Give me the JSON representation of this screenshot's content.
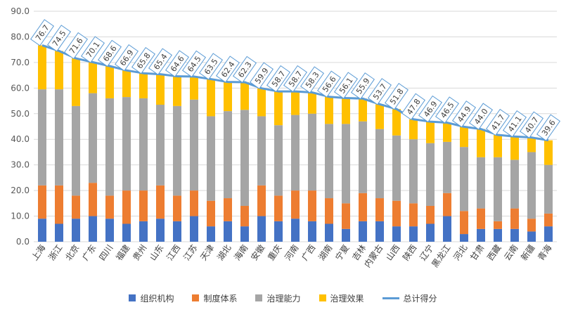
{
  "chart_data": {
    "type": "bar",
    "stacked": true,
    "ylim": [
      0,
      90
    ],
    "yticks": [
      "0.0",
      "10.0",
      "20.0",
      "30.0",
      "40.0",
      "50.0",
      "60.0",
      "70.0",
      "80.0",
      "90.0"
    ],
    "grid": true,
    "legend_position": "bottom",
    "categories": [
      "上海",
      "浙江",
      "北京",
      "广东",
      "四川",
      "福建",
      "贵州",
      "山东",
      "江西",
      "江苏",
      "天津",
      "湖北",
      "海南",
      "安徽",
      "重庆",
      "河南",
      "广西",
      "湖南",
      "宁夏",
      "吉林",
      "内蒙古",
      "山西",
      "陕西",
      "辽宁",
      "黑龙江",
      "河北",
      "甘肃",
      "西藏",
      "云南",
      "新疆",
      "青海"
    ],
    "series": [
      {
        "name": "组织机构",
        "color": "#4472C4",
        "values": [
          9,
          7,
          9,
          10,
          9,
          7,
          8,
          9,
          8,
          10,
          6,
          8,
          6,
          10,
          8,
          9,
          8,
          7,
          5,
          8,
          8,
          6,
          6,
          7,
          10,
          3,
          5,
          5,
          5,
          4,
          6
        ]
      },
      {
        "name": "制度体系",
        "color": "#ED7D31",
        "values": [
          13,
          15,
          9,
          13,
          9,
          13,
          12,
          13,
          10,
          10,
          10,
          9,
          8,
          12,
          10,
          11,
          12,
          10,
          10,
          11,
          9,
          10,
          9,
          7,
          9,
          9,
          8,
          3,
          8,
          5,
          5
        ]
      },
      {
        "name": "治理能力",
        "color": "#A5A5A5",
        "values": [
          37.5,
          37.5,
          35,
          35,
          38,
          36.5,
          36,
          31.5,
          35,
          35.5,
          33,
          34,
          37.5,
          27,
          27.5,
          29.5,
          30,
          29,
          31,
          28,
          27,
          25.5,
          25,
          24.5,
          20,
          25,
          20,
          25,
          19,
          26,
          19
        ]
      },
      {
        "name": "治理效果",
        "color": "#FFC000",
        "values": [
          17.2,
          15,
          18.6,
          12.1,
          12.6,
          10.4,
          9.8,
          11.9,
          11.6,
          9,
          14.5,
          11.4,
          10.8,
          10.9,
          13.2,
          9.2,
          8.3,
          10.6,
          10.1,
          8.9,
          9.7,
          10.3,
          7.8,
          8.4,
          7.5,
          7.9,
          11,
          8.7,
          9.1,
          5.7,
          9.6
        ]
      }
    ],
    "total": {
      "name": "总计得分",
      "color": "#5B9BD5",
      "values": [
        76.7,
        74.5,
        71.6,
        70.1,
        68.6,
        66.9,
        65.8,
        65.4,
        64.6,
        64.5,
        63.5,
        62.4,
        62.3,
        59.9,
        58.7,
        58.7,
        58.3,
        56.6,
        56.1,
        55.9,
        53.7,
        51.8,
        47.8,
        46.9,
        46.5,
        44.9,
        44.0,
        41.7,
        41.1,
        40.7,
        39.6
      ],
      "labels": [
        "76.7",
        "74.5",
        "71.6",
        "70.1",
        "68.6",
        "66.9",
        "65.8",
        "65.4",
        "64.6",
        "64.5",
        "63.5",
        "62.4",
        "62.3",
        "59.9",
        "58.7",
        "58.7",
        "58.3",
        "56.6",
        "56.1",
        "55.9",
        "53.7",
        "51.8",
        "47.8",
        "46.9",
        "46.5",
        "44.9",
        "44.0",
        "41.7",
        "41.1",
        "40.7",
        "39.6"
      ]
    }
  }
}
